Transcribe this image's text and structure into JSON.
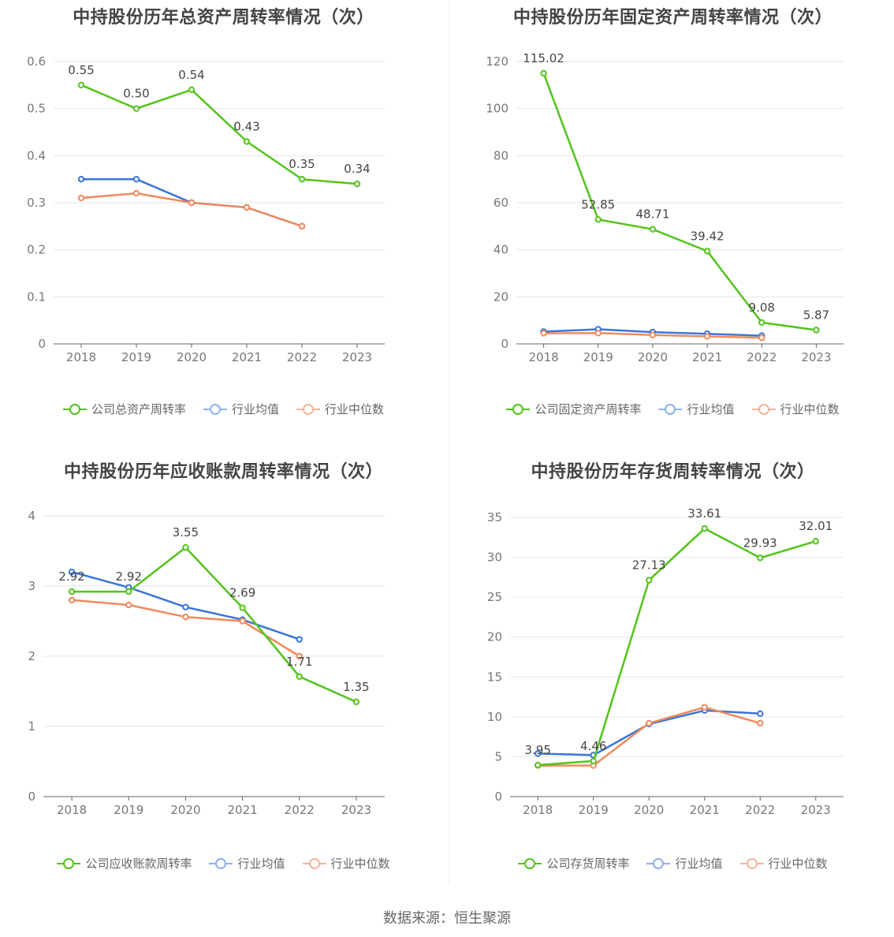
{
  "source": "数据来源：恒生聚源",
  "colors": {
    "company": "#52c41a",
    "average": "#3a75d8",
    "median": "#f08a5d",
    "grid": "#e6e6ee",
    "axis": "#666666",
    "label": "#444444"
  },
  "charts": [
    {
      "title": "中持股份历年总资产周转率情况（次）",
      "legend": [
        "公司总资产周转率",
        "行业均值",
        "行业中位数"
      ],
      "chart_data": {
        "type": "line",
        "categories": [
          "2018",
          "2019",
          "2020",
          "2021",
          "2022",
          "2023"
        ],
        "ylim": [
          0,
          0.6
        ],
        "yticks": [
          "0",
          "0.1",
          "0.2",
          "0.3",
          "0.4",
          "0.5",
          "0.6"
        ],
        "series": [
          {
            "name": "公司总资产周转率",
            "values": [
              0.55,
              0.5,
              0.54,
              0.43,
              0.35,
              0.34
            ],
            "labels": [
              "0.55",
              "0.50",
              "0.54",
              "0.43",
              "0.35",
              "0.34"
            ]
          },
          {
            "name": "行业均值",
            "values": [
              0.35,
              0.35,
              0.3,
              0.29,
              0.25,
              null
            ]
          },
          {
            "name": "行业中位数",
            "values": [
              0.31,
              0.32,
              0.3,
              0.29,
              0.25,
              null
            ]
          }
        ]
      }
    },
    {
      "title": "中持股份历年固定资产周转率情况（次）",
      "legend": [
        "公司固定资产周转率",
        "行业均值",
        "行业中位数"
      ],
      "chart_data": {
        "type": "line",
        "categories": [
          "2018",
          "2019",
          "2020",
          "2021",
          "2022",
          "2023"
        ],
        "ylim": [
          0,
          120
        ],
        "yticks": [
          "0",
          "20",
          "40",
          "60",
          "80",
          "100",
          "120"
        ],
        "series": [
          {
            "name": "公司固定资产周转率",
            "values": [
              115.02,
              52.85,
              48.71,
              39.42,
              9.08,
              5.87
            ],
            "labels": [
              "115.02",
              "52.85",
              "48.71",
              "39.42",
              "9.08",
              "5.87"
            ]
          },
          {
            "name": "行业均值",
            "values": [
              5.2,
              6.2,
              5.0,
              4.3,
              3.5,
              null
            ]
          },
          {
            "name": "行业中位数",
            "values": [
              4.5,
              4.6,
              3.8,
              3.2,
              2.6,
              null
            ]
          }
        ]
      }
    },
    {
      "title": "中持股份历年应收账款周转率情况（次）",
      "legend": [
        "公司应收账款周转率",
        "行业均值",
        "行业中位数"
      ],
      "chart_data": {
        "type": "line",
        "categories": [
          "2018",
          "2019",
          "2020",
          "2021",
          "2022",
          "2023"
        ],
        "ylim": [
          0,
          4
        ],
        "yticks": [
          "0",
          "1",
          "2",
          "3",
          "4"
        ],
        "series": [
          {
            "name": "公司应收账款周转率",
            "values": [
              2.92,
              2.92,
              3.55,
              2.69,
              1.71,
              1.35
            ],
            "labels": [
              "2.92",
              "2.92",
              "3.55",
              "2.69",
              "1.71",
              "1.35"
            ]
          },
          {
            "name": "行业均值",
            "values": [
              3.2,
              2.98,
              2.7,
              2.52,
              2.24,
              null
            ]
          },
          {
            "name": "行业中位数",
            "values": [
              2.8,
              2.73,
              2.56,
              2.5,
              2.0,
              null
            ]
          }
        ]
      }
    },
    {
      "title": "中持股份历年存货周转率情况（次）",
      "legend": [
        "公司存货周转率",
        "行业均值",
        "行业中位数"
      ],
      "chart_data": {
        "type": "line",
        "categories": [
          "2018",
          "2019",
          "2020",
          "2021",
          "2022",
          "2023"
        ],
        "ylim": [
          0,
          35
        ],
        "yticks": [
          "0",
          "5",
          "10",
          "15",
          "20",
          "25",
          "30",
          "35"
        ],
        "series": [
          {
            "name": "公司存货周转率",
            "values": [
              3.95,
              4.46,
              27.13,
              33.61,
              29.93,
              32.01
            ],
            "labels": [
              "3.95",
              "4.46",
              "27.13",
              "33.61",
              "29.93",
              "32.01"
            ]
          },
          {
            "name": "行业均值",
            "values": [
              5.4,
              5.2,
              9.1,
              10.8,
              10.4,
              null
            ]
          },
          {
            "name": "行业中位数",
            "values": [
              3.9,
              3.9,
              9.2,
              11.2,
              9.2,
              null
            ]
          }
        ]
      }
    }
  ]
}
